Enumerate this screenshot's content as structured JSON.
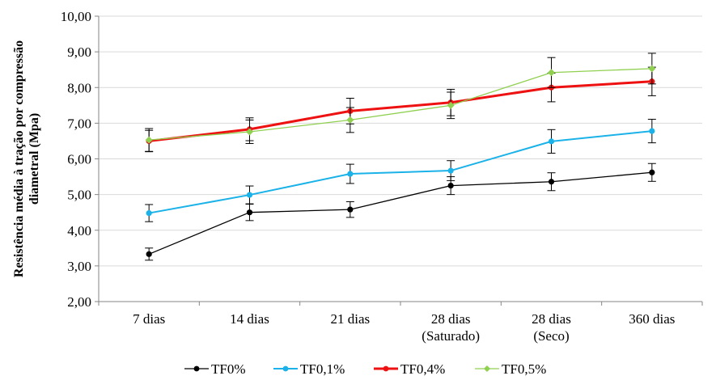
{
  "chart_data": {
    "type": "line",
    "title": "",
    "xlabel": "",
    "ylabel": "Resistência média à tração por compressão diametral (Mpa)",
    "ylabel_lines": [
      "Resistência média à tração por compressão",
      "diametral (Mpa)"
    ],
    "ylim": [
      2.0,
      10.0
    ],
    "yticks": [
      "2,00",
      "3,00",
      "4,00",
      "5,00",
      "6,00",
      "7,00",
      "8,00",
      "9,00",
      "10,00"
    ],
    "ytick_values": [
      2,
      3,
      4,
      5,
      6,
      7,
      8,
      9,
      10
    ],
    "categories": [
      "7 dias",
      "14 dias",
      "21 dias",
      "28 dias (Saturado)",
      "28 dias (Seco)",
      "360 dias"
    ],
    "category_lines": [
      [
        "7 dias"
      ],
      [
        "14 dias"
      ],
      [
        "21 dias"
      ],
      [
        "28 dias",
        "(Saturado)"
      ],
      [
        "28 dias",
        "(Seco)"
      ],
      [
        "360 dias"
      ]
    ],
    "grid": true,
    "legend_position": "bottom",
    "series": [
      {
        "name": "TF0%",
        "color": "#000000",
        "marker": "circle",
        "values": [
          3.33,
          4.5,
          4.58,
          5.25,
          5.36,
          5.62
        ],
        "error": [
          0.17,
          0.23,
          0.22,
          0.25,
          0.25,
          0.25
        ]
      },
      {
        "name": "TF0,1%",
        "color": "#1ab2e8",
        "marker": "circle",
        "values": [
          4.48,
          4.99,
          5.58,
          5.67,
          6.49,
          6.78
        ],
        "error": [
          0.24,
          0.25,
          0.27,
          0.28,
          0.33,
          0.33
        ]
      },
      {
        "name": "TF0,4%",
        "color": "#ee1111",
        "marker": "circle",
        "values": [
          6.5,
          6.83,
          7.34,
          7.58,
          8.0,
          8.17
        ],
        "error": [
          0.3,
          0.32,
          0.36,
          0.37,
          0.4,
          0.4
        ]
      },
      {
        "name": "TF0,5%",
        "color": "#90d050",
        "marker": "diamond",
        "values": [
          6.53,
          6.76,
          7.09,
          7.5,
          8.42,
          8.53
        ],
        "error": [
          0.32,
          0.33,
          0.35,
          0.37,
          0.42,
          0.43
        ]
      }
    ]
  }
}
